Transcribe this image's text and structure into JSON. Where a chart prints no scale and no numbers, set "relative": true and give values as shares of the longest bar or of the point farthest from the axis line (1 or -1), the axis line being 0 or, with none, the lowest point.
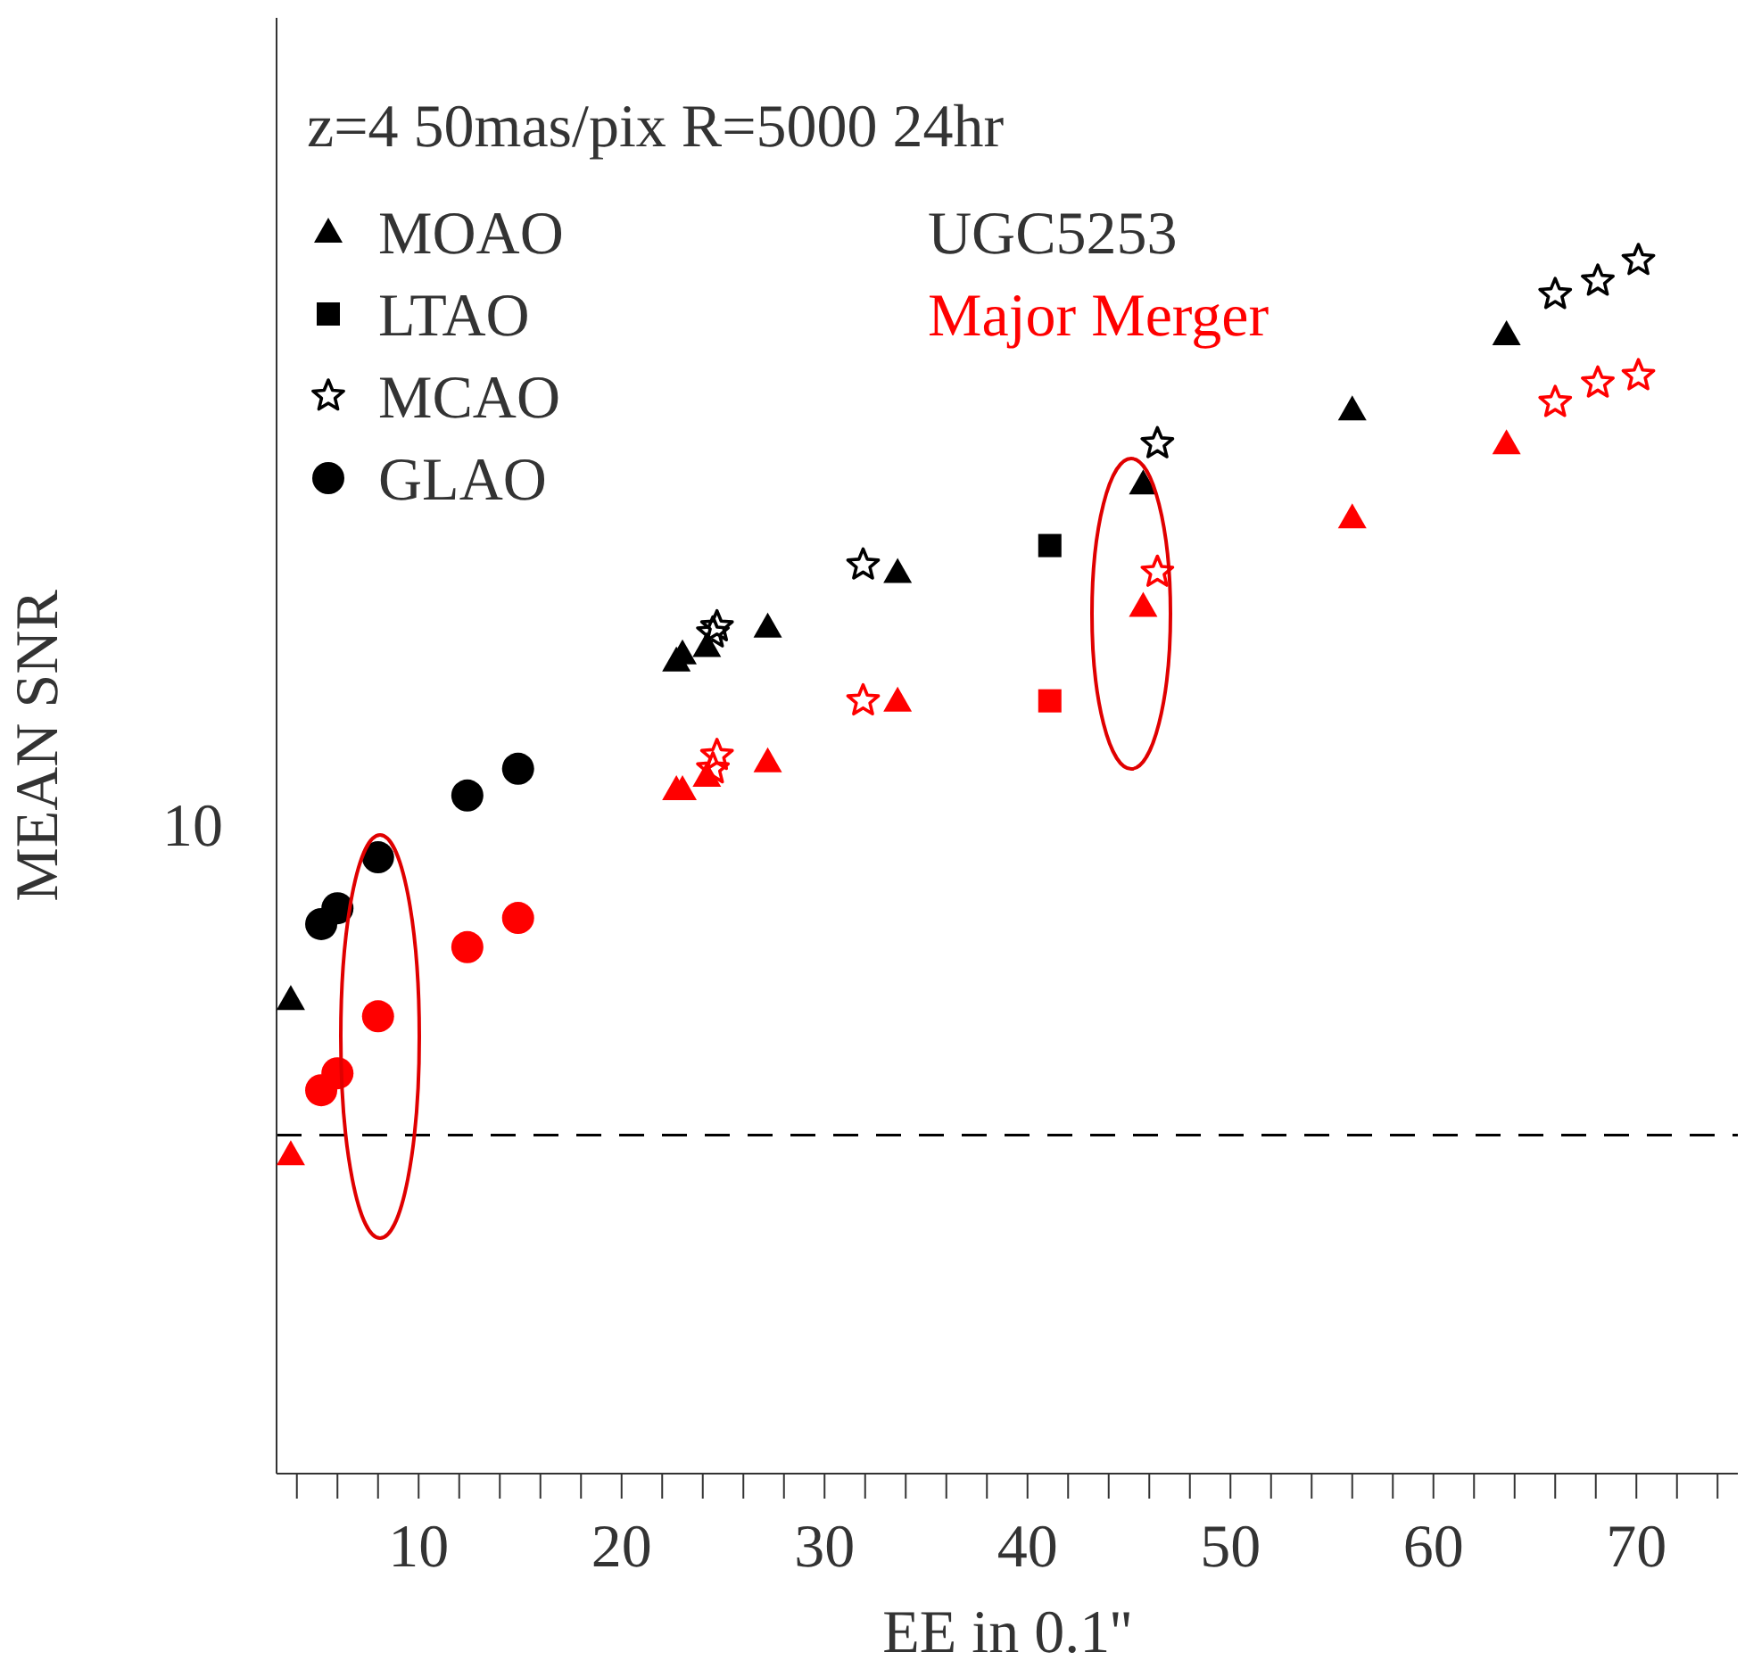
{
  "chart_data": {
    "type": "scatter",
    "title": "z=4 50mas/pix R=5000 24hr",
    "xlabel": "EE in 0.1''",
    "ylabel": "MEAN SNR",
    "annotations": [
      "UGC5253",
      "Major Merger",
      "10"
    ],
    "relative": true,
    "grid": false,
    "legend": "top left",
    "xlim": [
      3,
      75
    ],
    "xticks": [
      {
        "value": 4,
        "label": null
      },
      {
        "value": 6,
        "label": null
      },
      {
        "value": 8,
        "label": null
      },
      10,
      {
        "value": 12,
        "label": null
      },
      {
        "value": 14,
        "label": null
      },
      {
        "value": 16,
        "label": null
      },
      {
        "value": 18,
        "label": null
      },
      20,
      {
        "value": 22,
        "label": null
      },
      {
        "value": 24,
        "label": null
      },
      {
        "value": 26,
        "label": null
      },
      {
        "value": 28,
        "label": null
      },
      30,
      {
        "value": 32,
        "label": null
      },
      {
        "value": 34,
        "label": null
      },
      {
        "value": 36,
        "label": null
      },
      {
        "value": 38,
        "label": null
      },
      40,
      {
        "value": 42,
        "label": null
      },
      {
        "value": 44,
        "label": null
      },
      {
        "value": 46,
        "label": null
      },
      {
        "value": 48,
        "label": null
      },
      50,
      {
        "value": 52,
        "label": null
      },
      {
        "value": 54,
        "label": null
      },
      {
        "value": 56,
        "label": null
      },
      {
        "value": 58,
        "label": null
      },
      60,
      {
        "value": 62,
        "label": null
      },
      {
        "value": 64,
        "label": null
      },
      {
        "value": 66,
        "label": null
      },
      {
        "value": 68,
        "label": null
      },
      70,
      {
        "value": 72,
        "label": null
      },
      {
        "value": 74,
        "label": null
      }
    ],
    "ref_lines": [
      {
        "axis": "y",
        "value": 0.279,
        "color": "#000000",
        "line_style": "dashed"
      }
    ],
    "series": [
      {
        "name": "MOAO",
        "color": "#000000",
        "marker": "triangle",
        "x": [
          3.7,
          22.7,
          23.0,
          24.2,
          27.2,
          33.6,
          45.7,
          56.0,
          63.6
        ],
        "values": [
          0.391,
          0.67,
          0.676,
          0.682,
          0.698,
          0.743,
          0.816,
          0.877,
          0.939
        ]
      },
      {
        "name": "LTAO",
        "color": "#000000",
        "marker": "square",
        "x": [
          41.1
        ],
        "values": [
          0.765
        ]
      },
      {
        "name": "MCAO",
        "color": "#000000",
        "marker": "star",
        "x": [
          24.5,
          24.7,
          31.9,
          46.4,
          66.0,
          68.1,
          70.1
        ],
        "values": [
          0.693,
          0.698,
          0.749,
          0.849,
          0.972,
          0.983,
          1
        ]
      },
      {
        "name": "GLAO",
        "color": "#000000",
        "marker": "circle",
        "x": [
          5.2,
          6.0,
          8.0,
          12.4,
          14.9
        ],
        "values": [
          0.453,
          0.466,
          0.508,
          0.559,
          0.581
        ]
      },
      {
        "color": "#ff0000",
        "marker": "triangle",
        "x": [
          3.7,
          22.7,
          23.0,
          24.2,
          27.2,
          33.6,
          45.7,
          56.0,
          63.6
        ],
        "values": [
          0.263,
          0.564,
          0.564,
          0.575,
          0.587,
          0.637,
          0.715,
          0.788,
          0.849
        ]
      },
      {
        "color": "#ff0000",
        "marker": "square",
        "x": [
          41.1
        ],
        "values": [
          0.637
        ]
      },
      {
        "color": "#ff0000",
        "marker": "star",
        "x": [
          24.5,
          24.7,
          31.9,
          46.4,
          66.0,
          68.1,
          70.1
        ],
        "values": [
          0.581,
          0.592,
          0.637,
          0.743,
          0.883,
          0.899,
          0.905
        ]
      },
      {
        "color": "#ff0000",
        "marker": "circle",
        "x": [
          5.2,
          6.0,
          8.0,
          12.4,
          14.9
        ],
        "values": [
          0.316,
          0.33,
          0.377,
          0.434,
          0.458
        ]
      }
    ]
  }
}
